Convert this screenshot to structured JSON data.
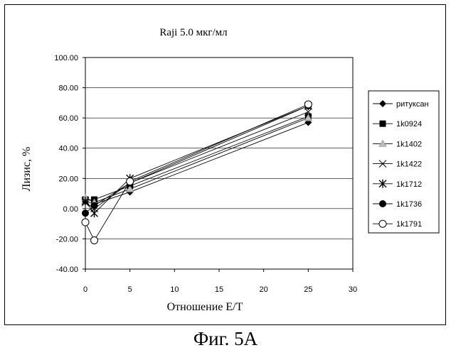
{
  "chart_data": {
    "type": "line",
    "title": "Raji 5.0 мкг/мл",
    "xlabel": "Отношение E/T",
    "ylabel": "Лизис, %",
    "xlim": [
      0,
      30
    ],
    "ylim": [
      -40,
      100
    ],
    "xticks": [
      0,
      5,
      10,
      15,
      20,
      25,
      30
    ],
    "yticks": [
      "100.00",
      "80.00",
      "60.00",
      "40.00",
      "20.00",
      "0.00",
      "-20.00",
      "-40.00"
    ],
    "grid": "horizontal",
    "legend_position": "right",
    "x": [
      0,
      1,
      5,
      25
    ],
    "series": [
      {
        "name": "ритуксан",
        "marker": "diamond",
        "values": [
          5,
          3,
          11,
          57
        ]
      },
      {
        "name": "1k0924",
        "marker": "square",
        "values": [
          6,
          6,
          15,
          61
        ]
      },
      {
        "name": "1k1402",
        "marker": "triangle",
        "values": [
          7,
          4,
          13,
          60
        ]
      },
      {
        "name": "1k1422",
        "marker": "x",
        "values": [
          4,
          0,
          17,
          64
        ]
      },
      {
        "name": "1k1712",
        "marker": "asterisk",
        "values": [
          5,
          -3,
          20,
          68
        ]
      },
      {
        "name": "1k1736",
        "marker": "circle-filled",
        "values": [
          -3,
          2,
          17,
          68
        ]
      },
      {
        "name": "1k1791",
        "marker": "circle-open",
        "values": [
          -9,
          -21,
          18,
          69
        ]
      }
    ]
  },
  "caption": "Фиг. 5А"
}
